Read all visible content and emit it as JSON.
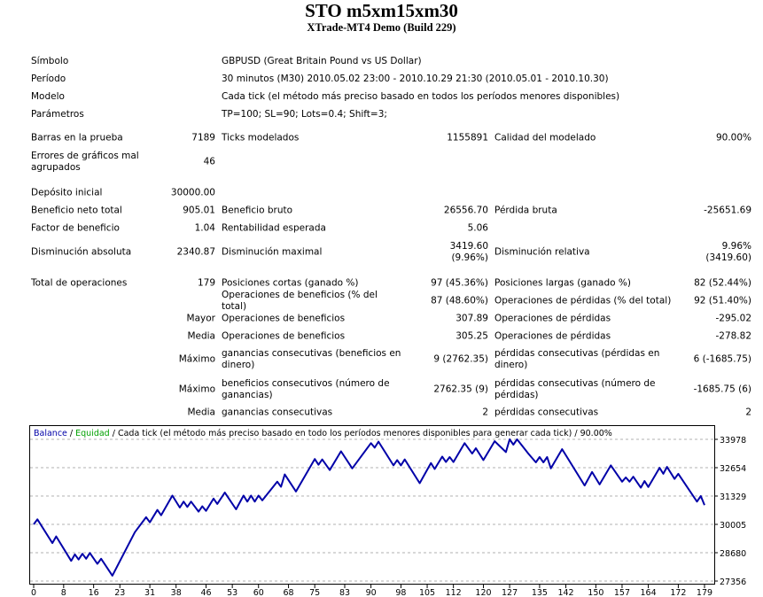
{
  "header": {
    "title": "STO m5xm15xm30",
    "subtitle": "XTrade-MT4 Demo (Build 229)"
  },
  "info": [
    {
      "label": "Símbolo",
      "value": "GBPUSD (Great Britain Pound vs US Dollar)"
    },
    {
      "label": "Período",
      "value": "30 minutos (M30) 2010.05.02 23:00 - 2010.10.29 21:30 (2010.05.01 - 2010.10.30)"
    },
    {
      "label": "Modelo",
      "value": "Cada tick (el método más preciso basado en todos los períodos menores disponibles)"
    },
    {
      "label": "Parámetros",
      "value": "TP=100; SL=90; Lots=0.4; Shift=3;"
    }
  ],
  "stats": [
    [
      "Barras en la prueba",
      "7189",
      "Ticks modelados",
      "1155891",
      "Calidad del modelado",
      "90.00%"
    ],
    [
      "Errores de gráficos mal\nagrupados",
      "46",
      "",
      "",
      "",
      ""
    ],
    [
      "Depósito inicial",
      "30000.00",
      "",
      "",
      "",
      ""
    ],
    [
      "Beneficio neto total",
      "905.01",
      "Beneficio bruto",
      "26556.70",
      "Pérdida bruta",
      "-25651.69"
    ],
    [
      "Factor de beneficio",
      "1.04",
      "Rentabilidad esperada",
      "5.06",
      "",
      ""
    ],
    [
      "Disminución absoluta",
      "2340.87",
      "Disminución maximal",
      "3419.60\n(9.96%)",
      "Disminución relativa",
      "9.96%\n(3419.60)"
    ],
    [
      "Total de operaciones",
      "179",
      "Posiciones cortas (ganado %)",
      "97 (45.36%)",
      "Posiciones largas (ganado %)",
      "82 (52.44%)"
    ],
    [
      "",
      "",
      "Operaciones de beneficios (% del total)",
      "87 (48.60%)",
      "Operaciones de pérdidas (% del total)",
      "92 (51.40%)"
    ],
    [
      "",
      "Mayor",
      "Operaciones de beneficios",
      "307.89",
      "Operaciones de pérdidas",
      "-295.02"
    ],
    [
      "",
      "Media",
      "Operaciones de beneficios",
      "305.25",
      "Operaciones de pérdidas",
      "-278.82"
    ],
    [
      "",
      "Máximo",
      "ganancias consecutivas (beneficios en\ndinero)",
      "9 (2762.35)",
      "pérdidas consecutivas (pérdidas en\ndinero)",
      "6 (-1685.75)"
    ],
    [
      "",
      "Máximo",
      "beneficios consecutivos (número de\nganancias)",
      "2762.35 (9)",
      "pérdidas consecutivas (número de\npérdidas)",
      "-1685.75 (6)"
    ],
    [
      "",
      "Media",
      "ganancias consecutivas",
      "2",
      "pérdidas consecutivas",
      "2"
    ]
  ],
  "chart_data": {
    "type": "line",
    "legend": {
      "balance": "Balance",
      "sep1": " / ",
      "equity": "Equidad",
      "rest": " / Cada tick (el método más preciso basado en todo los períodos menores disponibles para generar cada tick)  / 90.00%"
    },
    "colors": {
      "balance": "#0000a8",
      "equity": "#00a000",
      "grid": "#b0b0b0"
    },
    "ylim": [
      27356,
      33978
    ],
    "yticks": [
      33978,
      32654,
      31329,
      30005,
      28680,
      27356
    ],
    "xticks": [
      0,
      8,
      16,
      23,
      31,
      38,
      46,
      53,
      60,
      68,
      75,
      83,
      90,
      98,
      105,
      112,
      120,
      127,
      135,
      142,
      150,
      157,
      164,
      172,
      179
    ],
    "grid": true,
    "series": [
      {
        "name": "Balance",
        "points": [
          [
            0,
            30005
          ],
          [
            1,
            30240
          ],
          [
            5,
            29130
          ],
          [
            6,
            29440
          ],
          [
            10,
            28300
          ],
          [
            11,
            28600
          ],
          [
            12,
            28360
          ],
          [
            13,
            28630
          ],
          [
            14,
            28400
          ],
          [
            15,
            28670
          ],
          [
            17,
            28160
          ],
          [
            18,
            28400
          ],
          [
            21,
            27610
          ],
          [
            27,
            29640
          ],
          [
            30,
            30340
          ],
          [
            31,
            30100
          ],
          [
            33,
            30680
          ],
          [
            34,
            30430
          ],
          [
            37,
            31350
          ],
          [
            39,
            30790
          ],
          [
            40,
            31070
          ],
          [
            41,
            30820
          ],
          [
            42,
            31070
          ],
          [
            44,
            30600
          ],
          [
            45,
            30850
          ],
          [
            46,
            30640
          ],
          [
            48,
            31210
          ],
          [
            49,
            30960
          ],
          [
            51,
            31490
          ],
          [
            54,
            30710
          ],
          [
            56,
            31350
          ],
          [
            57,
            31070
          ],
          [
            58,
            31350
          ],
          [
            59,
            31070
          ],
          [
            60,
            31350
          ],
          [
            61,
            31125
          ],
          [
            65,
            32000
          ],
          [
            66,
            31760
          ],
          [
            67,
            32340
          ],
          [
            70,
            31540
          ],
          [
            75,
            33060
          ],
          [
            76,
            32790
          ],
          [
            77,
            33040
          ],
          [
            79,
            32540
          ],
          [
            82,
            33420
          ],
          [
            85,
            32620
          ],
          [
            90,
            33800
          ],
          [
            91,
            33590
          ],
          [
            92,
            33870
          ],
          [
            96,
            32760
          ],
          [
            97,
            33010
          ],
          [
            98,
            32760
          ],
          [
            99,
            33040
          ],
          [
            103,
            31930
          ],
          [
            106,
            32870
          ],
          [
            107,
            32590
          ],
          [
            109,
            33170
          ],
          [
            110,
            32920
          ],
          [
            111,
            33150
          ],
          [
            112,
            32920
          ],
          [
            115,
            33800
          ],
          [
            117,
            33310
          ],
          [
            118,
            33560
          ],
          [
            120,
            33010
          ],
          [
            123,
            33890
          ],
          [
            126,
            33380
          ],
          [
            127,
            33978
          ],
          [
            128,
            33730
          ],
          [
            129,
            33978
          ],
          [
            132,
            33310
          ],
          [
            134,
            32900
          ],
          [
            135,
            33150
          ],
          [
            136,
            32900
          ],
          [
            137,
            33150
          ],
          [
            138,
            32620
          ],
          [
            141,
            33520
          ],
          [
            147,
            31820
          ],
          [
            149,
            32450
          ],
          [
            151,
            31870
          ],
          [
            154,
            32760
          ],
          [
            157,
            32000
          ],
          [
            158,
            32200
          ],
          [
            159,
            32000
          ],
          [
            160,
            32230
          ],
          [
            162,
            31720
          ],
          [
            163,
            32030
          ],
          [
            164,
            31750
          ],
          [
            167,
            32650
          ],
          [
            168,
            32370
          ],
          [
            169,
            32690
          ],
          [
            171,
            32130
          ],
          [
            172,
            32370
          ],
          [
            177,
            31070
          ],
          [
            178,
            31330
          ],
          [
            179,
            30905.01
          ]
        ]
      }
    ]
  }
}
